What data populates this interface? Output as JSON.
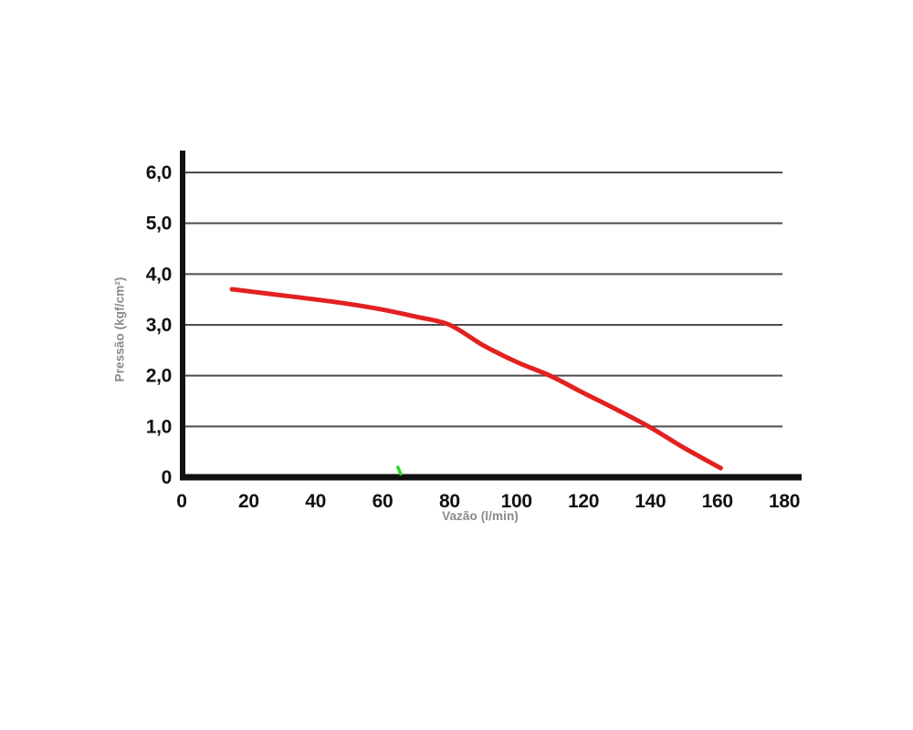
{
  "chart_data": {
    "type": "line",
    "title": "",
    "xlabel": "Vazão (l/min)",
    "ylabel": "Pressão (kgf/cm²)",
    "xlim": [
      0,
      185
    ],
    "ylim": [
      0,
      6.45
    ],
    "grid": "horizontal-only",
    "legend": "none",
    "x_ticks": {
      "values": [
        0,
        20,
        40,
        60,
        80,
        100,
        120,
        140,
        160,
        180
      ],
      "labels": [
        "0",
        "20",
        "40",
        "60",
        "80",
        "100",
        "120",
        "140",
        "160",
        "180"
      ]
    },
    "y_ticks": {
      "values": [
        0,
        1,
        2,
        3,
        4,
        5,
        6
      ],
      "labels": [
        "0",
        "1,0",
        "2,0",
        "3,0",
        "4,0",
        "5,0",
        "6,0"
      ]
    },
    "series": [
      {
        "name": "pressure-flow-curve",
        "color": "#e32020",
        "points": [
          [
            15,
            3.7
          ],
          [
            20,
            3.66
          ],
          [
            30,
            3.58
          ],
          [
            40,
            3.5
          ],
          [
            50,
            3.41
          ],
          [
            60,
            3.3
          ],
          [
            70,
            3.16
          ],
          [
            80,
            3.0
          ],
          [
            90,
            2.6
          ],
          [
            100,
            2.27
          ],
          [
            110,
            2.0
          ],
          [
            120,
            1.66
          ],
          [
            130,
            1.33
          ],
          [
            140,
            0.98
          ],
          [
            150,
            0.58
          ],
          [
            161,
            0.18
          ]
        ]
      }
    ],
    "annotations": [
      {
        "name": "green-tick-mark",
        "x": 65,
        "color": "#2fd32f"
      }
    ]
  },
  "colors": {
    "background": "#ffffff",
    "gridline": "#4d4d4d",
    "axis": "#111111",
    "tick_label": "#111111",
    "axis_title": "#8a8a8a"
  }
}
